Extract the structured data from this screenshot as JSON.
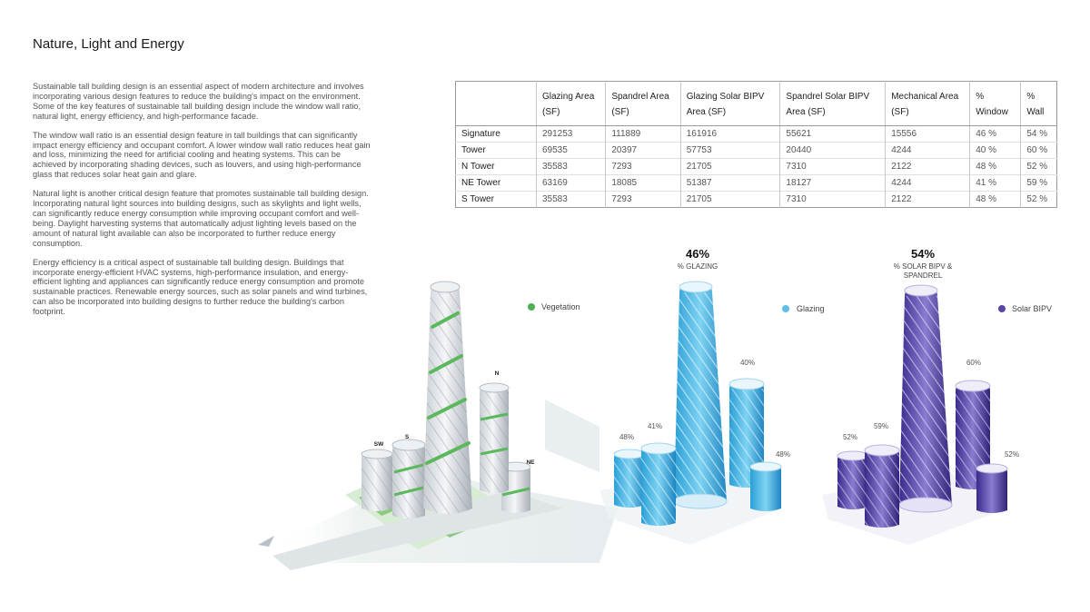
{
  "page": {
    "title": "Nature, Light and Energy",
    "paragraphs": [
      "Sustainable tall building design is an essential aspect of modern architecture and involves incorporating various design features to reduce the building's impact on the environment. Some of the key features of sustainable tall building design include the window wall ratio, natural light, energy efficiency, and high-performance facade.",
      "The window wall ratio is an essential design feature in tall buildings that can significantly impact energy efficiency and occupant comfort. A lower window wall ratio reduces heat gain and loss, minimizing the need for artificial cooling and heating systems. This can be achieved by incorporating shading devices, such as louvers, and using high-performance glass that reduces solar heat gain and glare.",
      "Natural light is another critical design feature that promotes sustainable tall building design. Incorporating natural light sources into building designs, such as skylights and light wells, can significantly reduce energy consumption while improving occupant comfort and well-being. Daylight harvesting systems that automatically adjust lighting levels based on the amount of natural light available can also be incorporated to further reduce energy consumption.",
      "Energy efficiency is a critical aspect of sustainable tall building design. Buildings that incorporate energy-efficient HVAC systems, high-performance insulation, and energy-efficient lighting and appliances can significantly reduce energy consumption and promote sustainable practices. Renewable energy sources, such as solar panels and wind turbines, can also be incorporated into building designs to further reduce the building's carbon footprint."
    ]
  },
  "table": {
    "headers": [
      "",
      "Glazing Area (SF)",
      "Spandrel Area (SF)",
      "Glazing Solar BIPV Area (SF)",
      "Spandrel Solar BIPV Area (SF)",
      "Mechanical Area (SF)",
      "% Window",
      "% Wall"
    ],
    "rows": [
      [
        "Signature",
        "291253",
        "111889",
        "161916",
        "55621",
        "15556",
        "46 %",
        "54 %"
      ],
      [
        "Tower",
        "69535",
        "20397",
        "57753",
        "20440",
        "4244",
        "40 %",
        "60 %"
      ],
      [
        "N Tower",
        "35583",
        "7293",
        "21705",
        "7310",
        "2122",
        "48 %",
        "52 %"
      ],
      [
        "NE Tower",
        "63169",
        "18085",
        "51387",
        "18127",
        "4244",
        "41 %",
        "59 %"
      ],
      [
        "S Tower",
        "35583",
        "7293",
        "21705",
        "7310",
        "2122",
        "48 %",
        "52 %"
      ]
    ]
  },
  "panels": {
    "vegetation": {
      "legend": "Vegetation",
      "legend_color": "#4caf50",
      "tower_labels": {
        "n": "N",
        "ne": "NE",
        "s": "S",
        "sw": "SW"
      }
    },
    "glazing": {
      "headline": "46%",
      "caption": "% GLAZING",
      "legend": "Glazing",
      "legend_color": "#5bc0e8",
      "percents": {
        "left": "48%",
        "mid": "41%",
        "right_top": "40%",
        "right_low": "48%"
      }
    },
    "solar": {
      "headline": "54%",
      "caption_line1": "% SOLAR BIPV &",
      "caption_line2": "SPANDREL",
      "legend": "Solar BIPV",
      "legend_color": "#5a44a8",
      "percents": {
        "left": "52%",
        "mid": "59%",
        "right_top": "60%",
        "right_low": "52%"
      }
    }
  }
}
